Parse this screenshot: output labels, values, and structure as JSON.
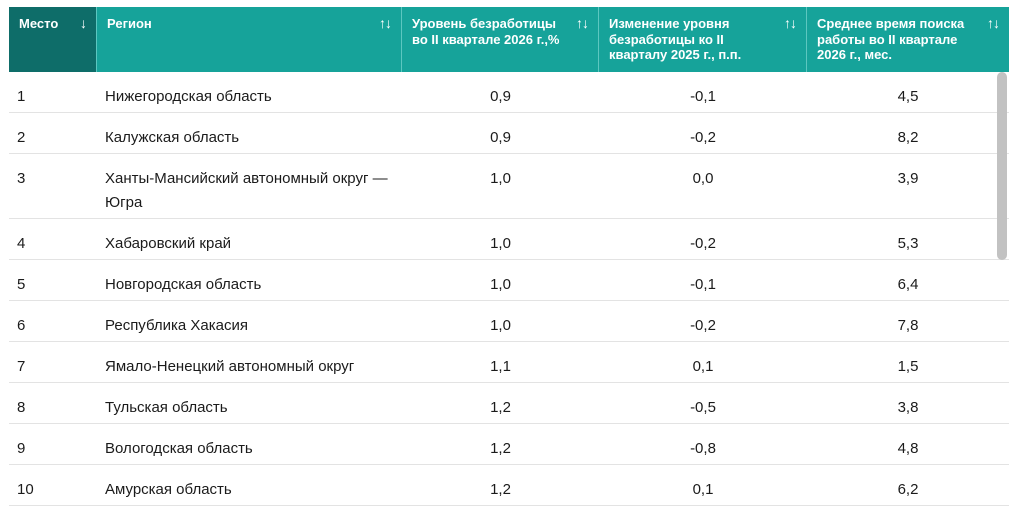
{
  "header": {
    "columns": [
      {
        "label": "Место",
        "sort_icon": "arrow-down",
        "sort_glyph": "↓"
      },
      {
        "label": "Регион",
        "sort_icon": "sort-both",
        "sort_glyph": "↑↓"
      },
      {
        "label": "Уровень безработицы во II квартале 2026 г.,%",
        "sort_icon": "sort-both",
        "sort_glyph": "↑↓"
      },
      {
        "label": "Изменение уровня безработицы ко II кварталу 2025 г., п.п.",
        "sort_icon": "sort-both",
        "sort_glyph": "↑↓"
      },
      {
        "label": "Среднее время поиска работы во II квартале 2026 г., мес.",
        "sort_icon": "sort-both",
        "sort_glyph": "↑↓"
      }
    ]
  },
  "rows": [
    {
      "rank": "1",
      "region": "Нижегородская область",
      "unemployment": "0,9",
      "change": "-0,1",
      "search_time": "4,5"
    },
    {
      "rank": "2",
      "region": "Калужская область",
      "unemployment": "0,9",
      "change": "-0,2",
      "search_time": "8,2"
    },
    {
      "rank": "3",
      "region": "Ханты-Мансийский автономный округ — Югра",
      "unemployment": "1,0",
      "change": "0,0",
      "search_time": "3,9"
    },
    {
      "rank": "4",
      "region": "Хабаровский край",
      "unemployment": "1,0",
      "change": "-0,2",
      "search_time": "5,3"
    },
    {
      "rank": "5",
      "region": "Новгородская область",
      "unemployment": "1,0",
      "change": "-0,1",
      "search_time": "6,4"
    },
    {
      "rank": "6",
      "region": "Республика Хакасия",
      "unemployment": "1,0",
      "change": "-0,2",
      "search_time": "7,8"
    },
    {
      "rank": "7",
      "region": "Ямало-Ненецкий автономный округ",
      "unemployment": "1,1",
      "change": "0,1",
      "search_time": "1,5"
    },
    {
      "rank": "8",
      "region": "Тульская область",
      "unemployment": "1,2",
      "change": "-0,5",
      "search_time": "3,8"
    },
    {
      "rank": "9",
      "region": "Вологодская область",
      "unemployment": "1,2",
      "change": "-0,8",
      "search_time": "4,8"
    },
    {
      "rank": "10",
      "region": "Амурская область",
      "unemployment": "1,2",
      "change": "0,1",
      "search_time": "6,2"
    }
  ],
  "colors": {
    "header": "#16a39a",
    "header_active": "#0e6d69",
    "row_border": "#e3e3e3",
    "scrollbar": "#c2c2c2"
  }
}
